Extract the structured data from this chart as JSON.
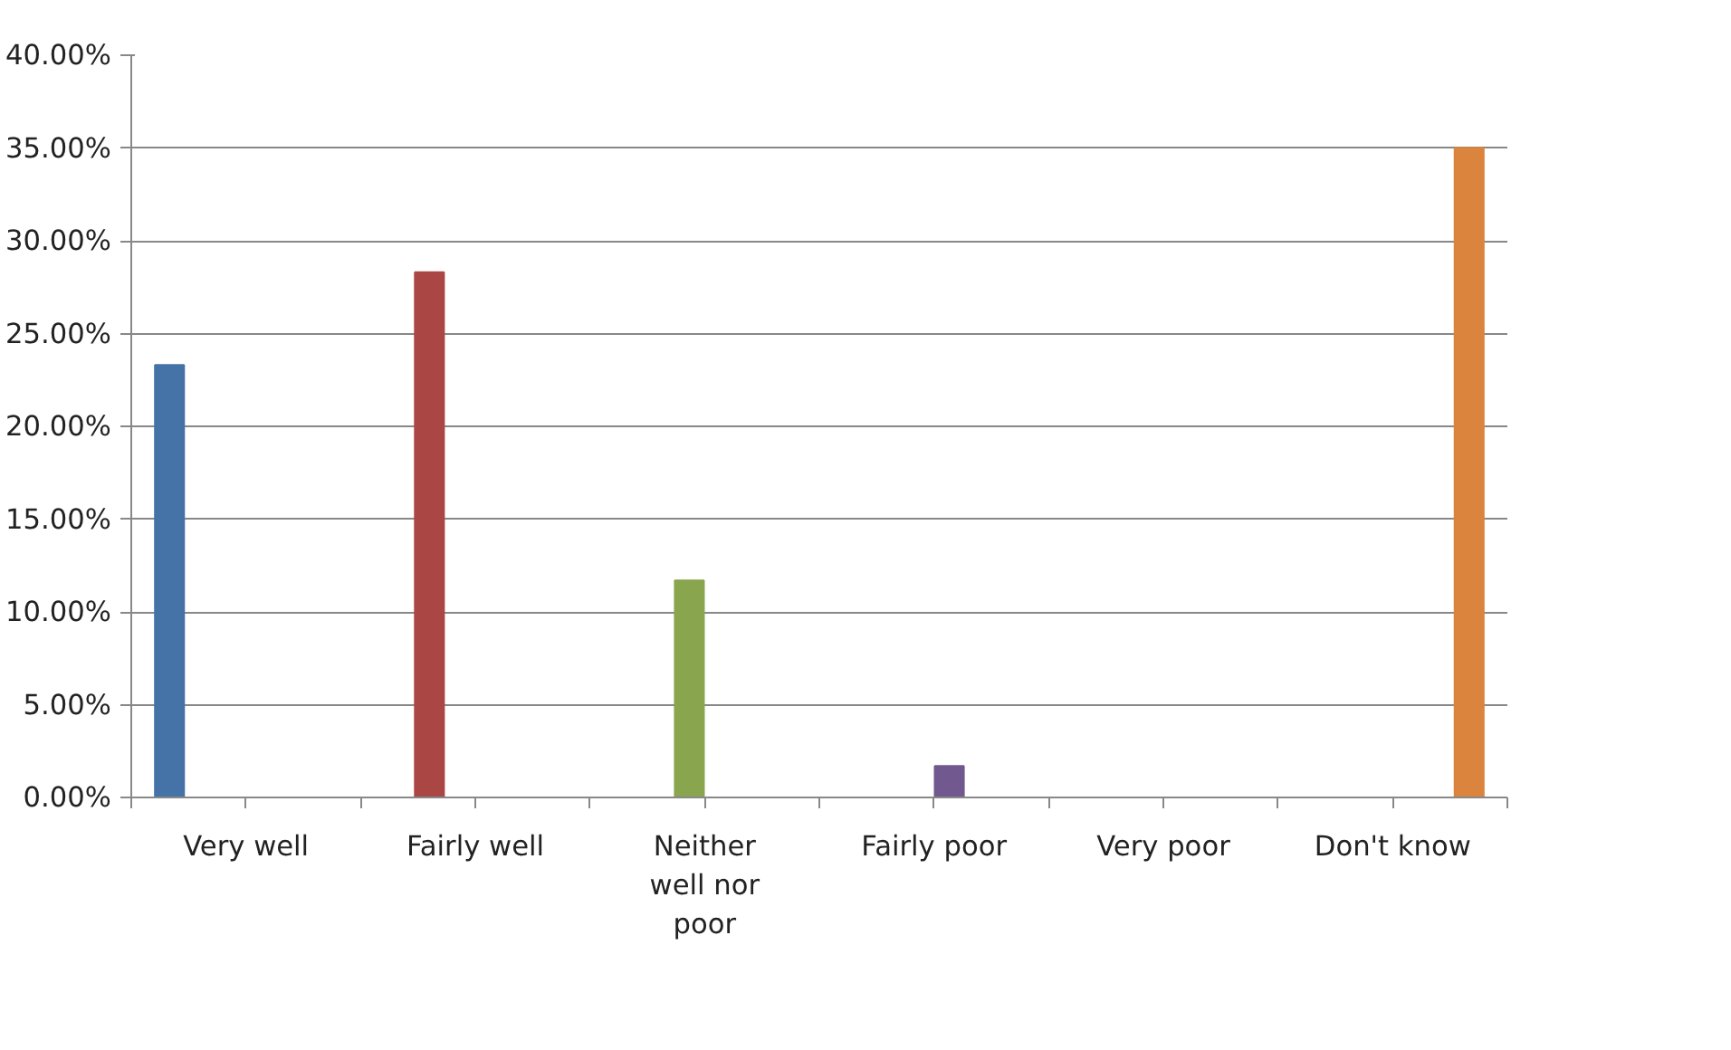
{
  "chart_data": {
    "type": "bar",
    "categories": [
      "Very well",
      "Fairly well",
      "Neither well nor poor",
      "Fairly poor",
      "Very poor",
      "Don't know"
    ],
    "series": [
      {
        "color": "#4572a7",
        "values": [
          23.3,
          null,
          null,
          null,
          null,
          null
        ]
      },
      {
        "color": "#aa4643",
        "values": [
          null,
          28.3,
          null,
          null,
          null,
          null
        ]
      },
      {
        "color": "#89a54e",
        "values": [
          null,
          null,
          11.7,
          null,
          null,
          null
        ]
      },
      {
        "color": "#71588f",
        "values": [
          null,
          null,
          null,
          1.7,
          null,
          null
        ]
      },
      {
        "color": "#4198af",
        "values": [
          null,
          null,
          null,
          null,
          0,
          null
        ]
      },
      {
        "color": "#db843d",
        "values": [
          null,
          null,
          null,
          null,
          null,
          35.0
        ]
      }
    ],
    "ylim": [
      0,
      40
    ],
    "yticks": [
      {
        "value": 0,
        "label": "0.00%"
      },
      {
        "value": 5,
        "label": "5.00%"
      },
      {
        "value": 10,
        "label": "10.00%"
      },
      {
        "value": 15,
        "label": "15.00%"
      },
      {
        "value": 20,
        "label": "20.00%"
      },
      {
        "value": 25,
        "label": "25.00%"
      },
      {
        "value": 30,
        "label": "30.00%"
      },
      {
        "value": 35,
        "label": "35.00%"
      },
      {
        "value": 40,
        "label": "40.00%"
      }
    ],
    "grid": "y"
  }
}
